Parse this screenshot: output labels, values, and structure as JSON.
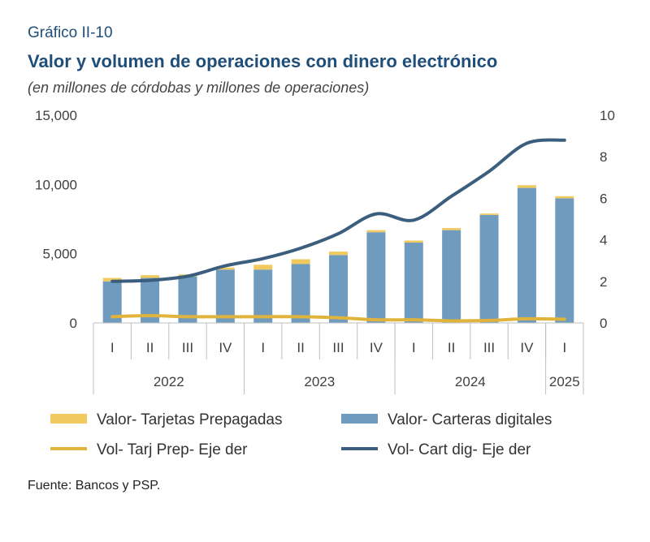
{
  "figure_label": "Gráfico II-10",
  "title": "Valor y volumen de operaciones con dinero electrónico",
  "subtitle": "(en millones de córdobas y millones de operaciones)",
  "source": "Fuente: Bancos y PSP.",
  "chart_data": {
    "type": "bar",
    "categories": [
      "I",
      "II",
      "III",
      "IV",
      "I",
      "II",
      "III",
      "IV",
      "I",
      "II",
      "III",
      "IV",
      "I"
    ],
    "groups": [
      {
        "label": "2022",
        "count": 4
      },
      {
        "label": "2023",
        "count": 4
      },
      {
        "label": "2024",
        "count": 4
      },
      {
        "label": "2025",
        "count": 1
      }
    ],
    "series": [
      {
        "name": "Valor- Carteras digitales",
        "kind": "bar",
        "axis": "left",
        "values": [
          3000,
          3250,
          3350,
          3850,
          3850,
          4250,
          4900,
          6550,
          5800,
          6700,
          7800,
          9750,
          9000
        ],
        "color": "#6f9bbf"
      },
      {
        "name": "Valor- Tarjetas Prepagadas",
        "kind": "bar",
        "axis": "left",
        "values": [
          250,
          200,
          150,
          150,
          350,
          350,
          250,
          150,
          150,
          150,
          100,
          200,
          150
        ],
        "color": "#f0ca5e"
      },
      {
        "name": "Vol- Tarj Prep- Eje der",
        "kind": "line",
        "axis": "right",
        "values": [
          0.3,
          0.35,
          0.3,
          0.3,
          0.3,
          0.3,
          0.25,
          0.15,
          0.15,
          0.1,
          0.12,
          0.2,
          0.18
        ],
        "color": "#e0b43c"
      },
      {
        "name": "Vol- Cart dig- Eje der",
        "kind": "line",
        "axis": "right",
        "values": [
          2.0,
          2.05,
          2.25,
          2.75,
          3.1,
          3.6,
          4.3,
          5.25,
          4.95,
          6.1,
          7.3,
          8.65,
          8.8
        ],
        "color": "#3b5e7e"
      }
    ],
    "y_left": {
      "min": 0,
      "max": 15000,
      "ticks": [
        "0",
        "5,000",
        "10,000",
        "15,000"
      ]
    },
    "y_right": {
      "min": 0,
      "max": 10,
      "ticks": [
        "0",
        "2",
        "4",
        "6",
        "8",
        "10"
      ]
    },
    "stacked": true,
    "grid": false,
    "legend_position": "bottom"
  }
}
